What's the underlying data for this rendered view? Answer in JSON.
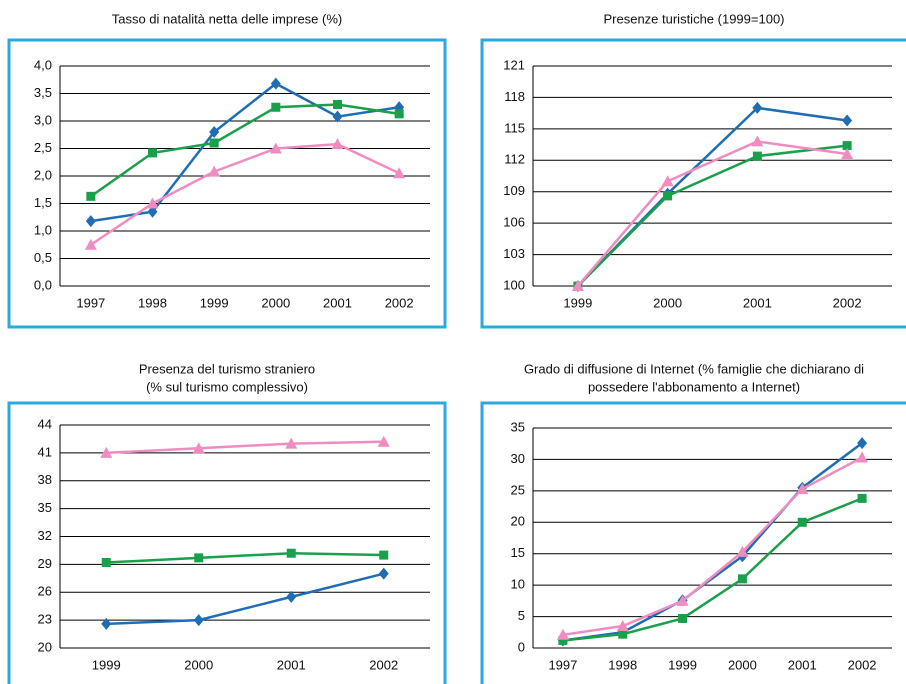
{
  "chart_data": [
    {
      "type": "line",
      "title": [
        "Tasso di natalità netta delle imprese (%)"
      ],
      "categories": [
        "1997",
        "1998",
        "1999",
        "2000",
        "2001",
        "2002"
      ],
      "series": [
        {
          "color": "#1f6db4",
          "marker": "diamond",
          "values": [
            1.18,
            1.35,
            2.8,
            3.68,
            3.08,
            3.25
          ]
        },
        {
          "color": "#1aa04a",
          "marker": "square",
          "values": [
            1.63,
            2.42,
            2.6,
            3.25,
            3.3,
            3.13
          ]
        },
        {
          "color": "#f08cc0",
          "marker": "triangle",
          "values": [
            0.75,
            1.5,
            2.08,
            2.5,
            2.58,
            2.05
          ]
        }
      ],
      "ylim": [
        0,
        4
      ],
      "yticks": [
        {
          "value": 0,
          "label": "0,0"
        },
        {
          "value": 0.5,
          "label": "0,5"
        },
        {
          "value": 1,
          "label": "1,0"
        },
        {
          "value": 1.5,
          "label": "1,5"
        },
        {
          "value": 2,
          "label": "2,0"
        },
        {
          "value": 2.5,
          "label": "2,5"
        },
        {
          "value": 3,
          "label": "3,0"
        },
        {
          "value": 3.5,
          "label": "3,5"
        },
        {
          "value": 4,
          "label": "4,0"
        }
      ],
      "grid": true
    },
    {
      "type": "line",
      "title": [
        "Presenze turistiche (1999=100)"
      ],
      "categories": [
        "1999",
        "2000",
        "2001",
        "2002"
      ],
      "series": [
        {
          "color": "#1f6db4",
          "marker": "diamond",
          "values": [
            100,
            108.8,
            117,
            115.8
          ]
        },
        {
          "color": "#1aa04a",
          "marker": "square",
          "values": [
            100,
            108.6,
            112.4,
            113.4
          ]
        },
        {
          "color": "#f08cc0",
          "marker": "triangle",
          "values": [
            100,
            110,
            113.8,
            112.6
          ]
        }
      ],
      "ylim": [
        100,
        121
      ],
      "yticks": [
        100,
        103,
        106,
        109,
        112,
        115,
        118,
        121
      ],
      "grid": true
    },
    {
      "type": "line",
      "title": [
        "Presenza del turismo straniero",
        "(% sul turismo complessivo)"
      ],
      "categories": [
        "1999",
        "2000",
        "2001",
        "2002"
      ],
      "series": [
        {
          "color": "#1f6db4",
          "marker": "diamond",
          "values": [
            22.6,
            23,
            25.5,
            28
          ]
        },
        {
          "color": "#1aa04a",
          "marker": "square",
          "values": [
            29.2,
            29.7,
            30.2,
            30
          ]
        },
        {
          "color": "#f08cc0",
          "marker": "triangle",
          "values": [
            41,
            41.5,
            42,
            42.2
          ]
        }
      ],
      "ylim": [
        20,
        44
      ],
      "yticks": [
        20,
        23,
        26,
        29,
        32,
        35,
        38,
        41,
        44
      ],
      "grid": true
    },
    {
      "type": "line",
      "title": [
        "Grado di diffusione di Internet (% famiglie che dichiarano di",
        "possedere l'abbonamento a Internet)"
      ],
      "categories": [
        "1997",
        "1998",
        "1999",
        "2000",
        "2001",
        "2002"
      ],
      "series": [
        {
          "color": "#1f6db4",
          "marker": "diamond",
          "values": [
            1.2,
            2.5,
            7.6,
            14.6,
            25.5,
            32.6
          ]
        },
        {
          "color": "#1aa04a",
          "marker": "square",
          "values": [
            1.2,
            2.2,
            4.7,
            11,
            20,
            23.8
          ]
        },
        {
          "color": "#f08cc0",
          "marker": "triangle",
          "values": [
            2.1,
            3.5,
            7.5,
            15.3,
            25.3,
            30.3
          ]
        }
      ],
      "ylim": [
        0,
        35
      ],
      "yticks": [
        0,
        5,
        10,
        15,
        20,
        25,
        30,
        35
      ],
      "grid": true
    }
  ]
}
